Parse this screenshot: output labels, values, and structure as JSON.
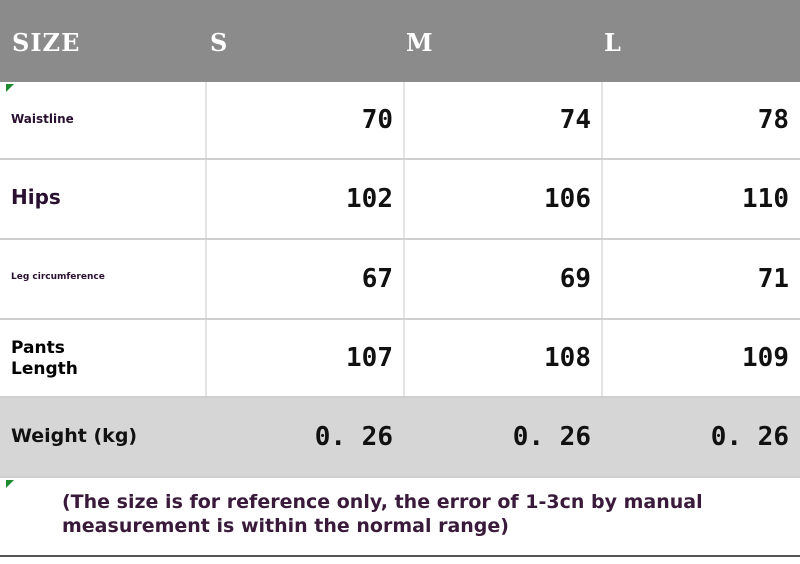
{
  "table": {
    "header": [
      "SIZE",
      "S",
      "M",
      "L"
    ],
    "rows": [
      {
        "label": "Waistline",
        "values": [
          70,
          74,
          78
        ]
      },
      {
        "label": "Hips",
        "values": [
          102,
          106,
          110
        ]
      },
      {
        "label": "Leg circumference",
        "values": [
          67,
          69,
          71
        ]
      },
      {
        "label": "Pants Length",
        "values": [
          107,
          108,
          109
        ]
      },
      {
        "label": "Weight (kg)",
        "values": [
          "0. 26",
          "0. 26",
          "0. 26"
        ]
      }
    ],
    "note": "(The size is for reference only, the error of 1-3cn by manual measurement is within the normal range)"
  }
}
